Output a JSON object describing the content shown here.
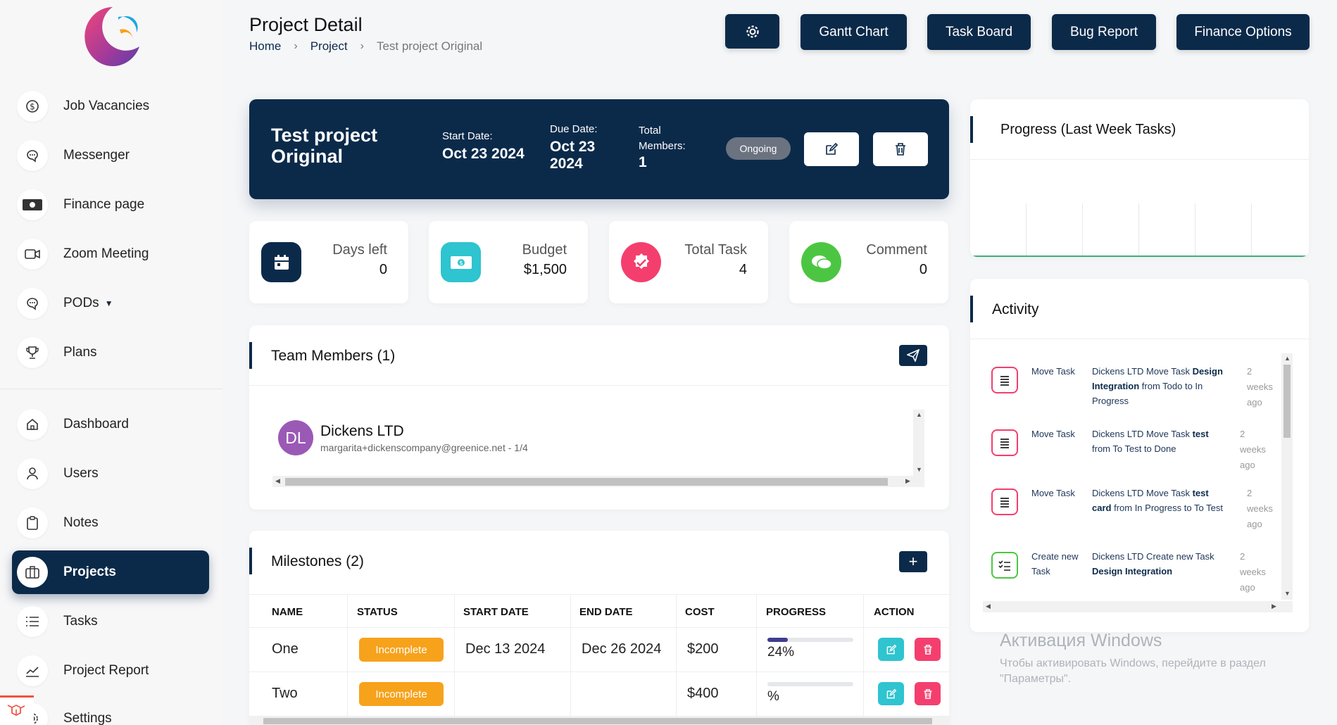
{
  "sidebar": {
    "group1": [
      {
        "label": "Job Vacancies",
        "icon": "dollar-circle-icon"
      },
      {
        "label": "Messenger",
        "icon": "chat-bubble-icon"
      },
      {
        "label": "Finance page",
        "icon": "banknote-icon"
      },
      {
        "label": "Zoom Meeting",
        "icon": "video-camera-icon"
      },
      {
        "label": "PODs",
        "icon": "chat-bubble-icon"
      },
      {
        "label": "Plans",
        "icon": "trophy-icon"
      }
    ],
    "group2": [
      {
        "label": "Dashboard",
        "icon": "home-icon"
      },
      {
        "label": "Users",
        "icon": "user-icon"
      },
      {
        "label": "Notes",
        "icon": "clipboard-icon"
      },
      {
        "label": "Projects",
        "icon": "briefcase-icon",
        "active": true
      },
      {
        "label": "Tasks",
        "icon": "list-icon"
      },
      {
        "label": "Project Report",
        "icon": "chart-line-icon"
      },
      {
        "label": "Settings",
        "icon": "gear-icon"
      }
    ]
  },
  "header": {
    "title": "Project Detail",
    "breadcrumb": [
      "Home",
      "Project",
      "Test project Original"
    ],
    "buttons": {
      "gantt": "Gantt Chart",
      "task_board": "Task Board",
      "bug_report": "Bug Report",
      "finance": "Finance Options"
    }
  },
  "project": {
    "name": "Test project Original",
    "start_label": "Start Date:",
    "start_value": "Oct 23 2024",
    "due_label": "Due Date:",
    "due_value": "Oct 23 2024",
    "members_label": "Total Members:",
    "members_value": "1",
    "status": "Ongoing"
  },
  "stats": [
    {
      "title": "Days left",
      "value": "0",
      "color": "#0b2a4a",
      "icon": "calendar-icon"
    },
    {
      "title": "Budget",
      "value": "$1,500",
      "color": "#2ec4d0",
      "icon": "money-icon"
    },
    {
      "title": "Total Task",
      "value": "4",
      "color": "#f43f6e",
      "icon": "check-badge-icon"
    },
    {
      "title": "Comment",
      "value": "0",
      "color": "#4cc642",
      "icon": "comments-icon"
    }
  ],
  "team": {
    "title": "Team Members (1)",
    "members": [
      {
        "initials": "DL",
        "name": "Dickens LTD",
        "email": "margarita+dickenscompany@greenice.net - 1/4"
      }
    ]
  },
  "milestones": {
    "title": "Milestones (2)",
    "columns": [
      "NAME",
      "STATUS",
      "START DATE",
      "END DATE",
      "COST",
      "PROGRESS",
      "ACTION"
    ],
    "rows": [
      {
        "name": "One",
        "status": "Incomplete",
        "start": "Dec 13 2024",
        "end": "Dec 26 2024",
        "cost": "$200",
        "progress_text": "24%",
        "progress": 24
      },
      {
        "name": "Two",
        "status": "Incomplete",
        "start": "",
        "end": "",
        "cost": "$400",
        "progress_text": "%",
        "progress": 0
      }
    ]
  },
  "progress_card": {
    "title": "Progress (Last Week Tasks)"
  },
  "activity": {
    "title": "Activity",
    "items": [
      {
        "type": "Move Task",
        "pre": "Dickens LTD Move Task ",
        "bold": "Design Integration",
        "post": " from Todo to In Progress",
        "time": "2 weeks ago",
        "color": "#f43f6e"
      },
      {
        "type": "Move Task",
        "pre": "Dickens LTD Move Task ",
        "bold": "test",
        "post": " from To Test to Done",
        "time": "2 weeks ago",
        "color": "#f43f6e"
      },
      {
        "type": "Move Task",
        "pre": "Dickens LTD Move Task ",
        "bold": "test card",
        "post": " from In Progress to To Test",
        "time": "2 weeks ago",
        "color": "#f43f6e"
      },
      {
        "type": "Create new Task",
        "pre": "Dickens LTD Create new Task ",
        "bold": "Design Integration",
        "post": "",
        "time": "2 weeks ago",
        "color": "#4cc642"
      }
    ]
  },
  "watermark": {
    "line1": "Активация Windows",
    "line2": "Чтобы активировать Windows, перейдите в раздел \"Параметры\"."
  }
}
